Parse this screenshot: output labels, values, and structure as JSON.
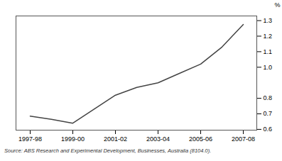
{
  "chart_data": {
    "type": "line",
    "categories": [
      "1997-98",
      null,
      "1999-00",
      null,
      "2001-02",
      null,
      "2003-04",
      null,
      "2005-06",
      null,
      "2007-08"
    ],
    "values": [
      0.685,
      0.665,
      0.64,
      0.73,
      0.82,
      0.87,
      0.9,
      0.96,
      1.02,
      1.13,
      1.275
    ],
    "color": "#444444",
    "ylabel": "%",
    "ylim": [
      0.595,
      1.33
    ],
    "yticks": [
      0.6,
      0.7,
      0.8,
      {
        "value": 1.0,
        "label": "1.0"
      },
      1.1,
      1.2,
      1.3
    ],
    "grid": false,
    "caption": "Source: ABS Research and Experimental Development, Businesses, Australia (8104.0)."
  }
}
